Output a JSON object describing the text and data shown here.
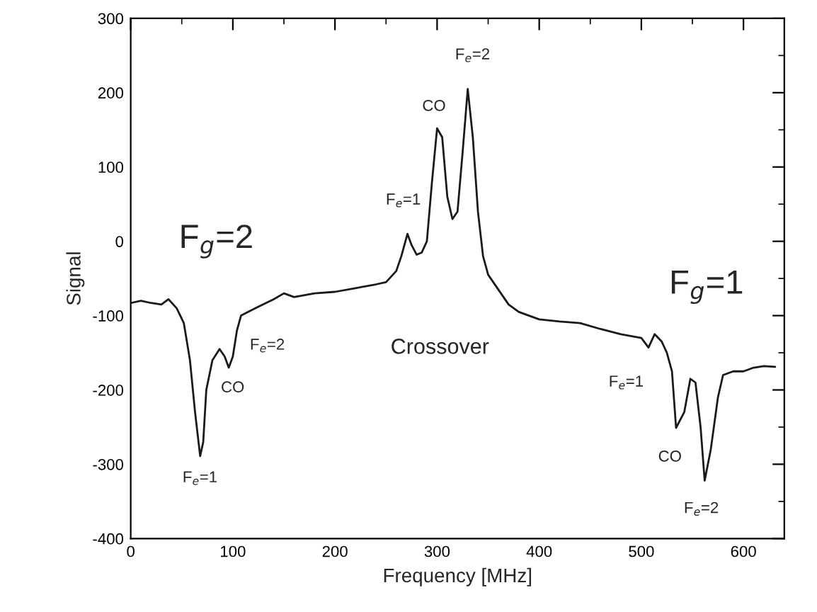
{
  "chart_data": {
    "type": "line",
    "xlabel": "Frequency [MHz]",
    "ylabel": "Signal",
    "xlim": [
      0,
      640
    ],
    "xticks": [
      0,
      100,
      200,
      300,
      400,
      500,
      600
    ],
    "ylim": [
      -400,
      300
    ],
    "yticks": [
      -400,
      -300,
      -200,
      -100,
      0,
      100,
      200,
      300
    ],
    "grid": false,
    "legend": false,
    "marker": "none",
    "line_style": "solid",
    "x": [
      0,
      10,
      20,
      30,
      37,
      45,
      52,
      58,
      63,
      68,
      71,
      74,
      80,
      87,
      92,
      96,
      100,
      104,
      108,
      115,
      125,
      140,
      150,
      160,
      180,
      200,
      220,
      240,
      250,
      260,
      265,
      271,
      275,
      280,
      285,
      290,
      295,
      300,
      305,
      310,
      315,
      320,
      325,
      330,
      335,
      340,
      345,
      350,
      360,
      370,
      380,
      400,
      420,
      440,
      460,
      480,
      500,
      507,
      513,
      520,
      525,
      530,
      534,
      542,
      548,
      553,
      558,
      562,
      568,
      575,
      580,
      590,
      600,
      610,
      620,
      631
    ],
    "series": [
      {
        "color": "#1a1a1a",
        "values": [
          -83,
          -80,
          -83,
          -85,
          -78,
          -90,
          -110,
          -160,
          -230,
          -289,
          -270,
          -200,
          -160,
          -145,
          -155,
          -170,
          -155,
          -120,
          -100,
          -95,
          -88,
          -78,
          -70,
          -75,
          -70,
          -68,
          -63,
          -58,
          -55,
          -40,
          -20,
          10,
          -5,
          -18,
          -15,
          0,
          80,
          152,
          140,
          60,
          30,
          40,
          120,
          205,
          140,
          40,
          -20,
          -45,
          -65,
          -85,
          -95,
          -105,
          -108,
          -110,
          -118,
          -125,
          -130,
          -143,
          -125,
          -135,
          -150,
          -175,
          -251,
          -230,
          -185,
          -190,
          -250,
          -322,
          -280,
          -210,
          -180,
          -175,
          -175,
          -170,
          -168,
          -169
        ]
      }
    ],
    "annotations": [
      "F$_{g}$=2",
      "F$_{g}$=1",
      "Crossover",
      "F$_{e}$=2",
      "CO",
      "F$_{e}$=1",
      "F$_{e}$=2",
      "CO",
      "F$_{e}$=1",
      "F$_{e}$=1",
      "CO",
      "F$_{e}$=2"
    ]
  }
}
